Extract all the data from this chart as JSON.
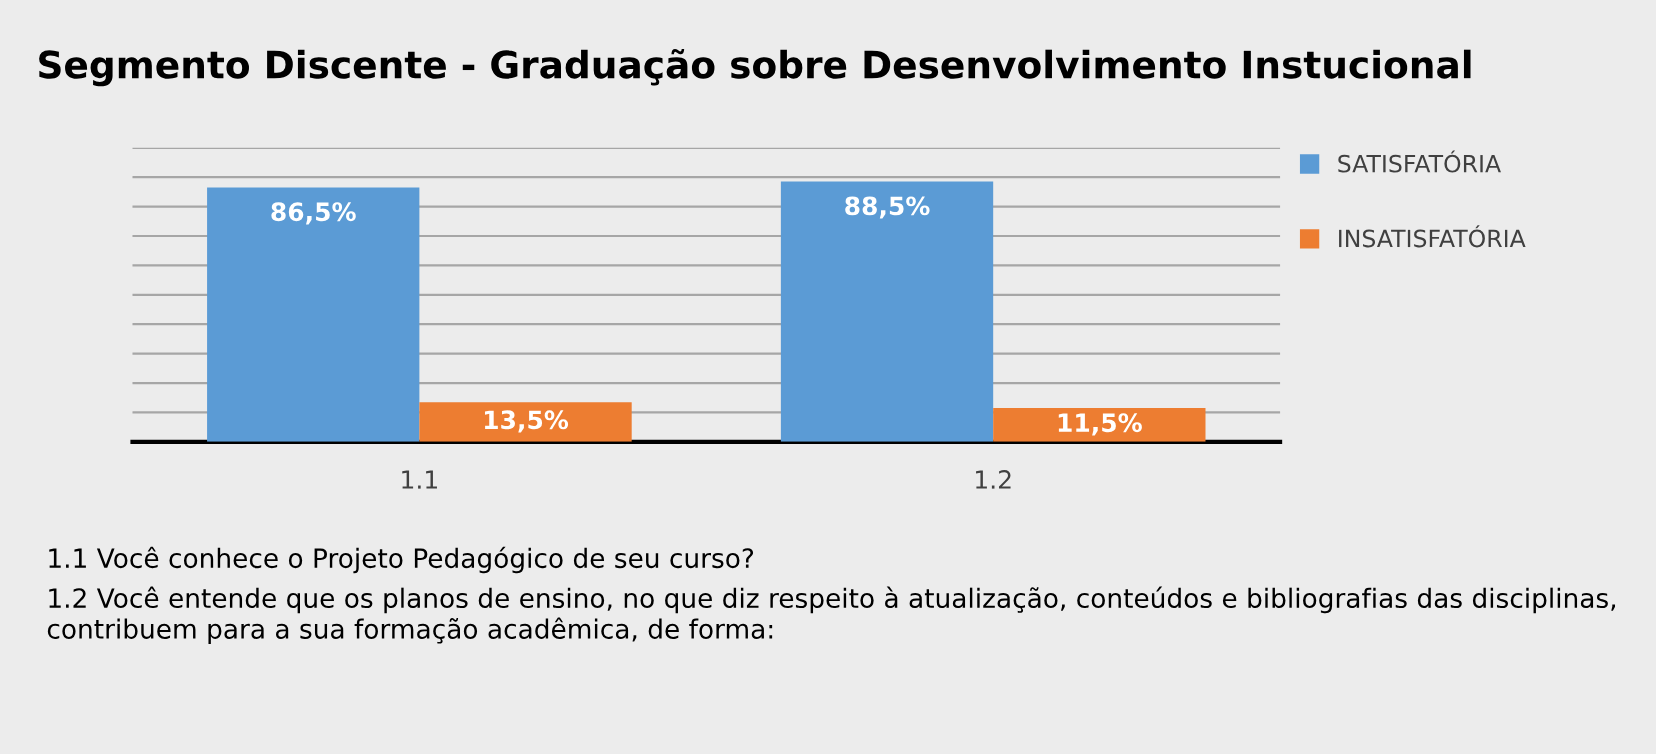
{
  "chart_data": {
    "type": "bar",
    "title": "Segmento Discente - Graduação sobre Desenvolvimento Instucional",
    "categories": [
      "1.1",
      "1.2"
    ],
    "series": [
      {
        "name": "SATISFATÓRIA",
        "color": "#5b9bd5",
        "values": [
          86.5,
          88.5
        ],
        "value_labels": [
          "86,5%",
          "88,5%"
        ]
      },
      {
        "name": "INSATISFATÓRIA",
        "color": "#ed7d31",
        "values": [
          13.5,
          11.5
        ],
        "value_labels": [
          "13,5%",
          "11,5%"
        ]
      }
    ],
    "ylim": [
      0,
      100
    ],
    "yticks": [
      {
        "value": 10,
        "label": null
      },
      {
        "value": 20,
        "label": null
      },
      {
        "value": 30,
        "label": null
      },
      {
        "value": 40,
        "label": null
      },
      {
        "value": 50,
        "label": null
      },
      {
        "value": 60,
        "label": null
      },
      {
        "value": 70,
        "label": null
      },
      {
        "value": 80,
        "label": null
      },
      {
        "value": 90,
        "label": null
      },
      {
        "value": 100,
        "label": null
      }
    ],
    "tick_labels": "x",
    "grid": "y",
    "legend": "right",
    "annotations": [
      "1.1 Você conhece o Projeto Pedagógico de seu curso?",
      "1.2 Você entende que os planos de ensino, no que diz respeito à atualização, conteúdos e bibliografias das disciplinas, contribuem para a sua formação acadêmica, de forma:"
    ]
  }
}
